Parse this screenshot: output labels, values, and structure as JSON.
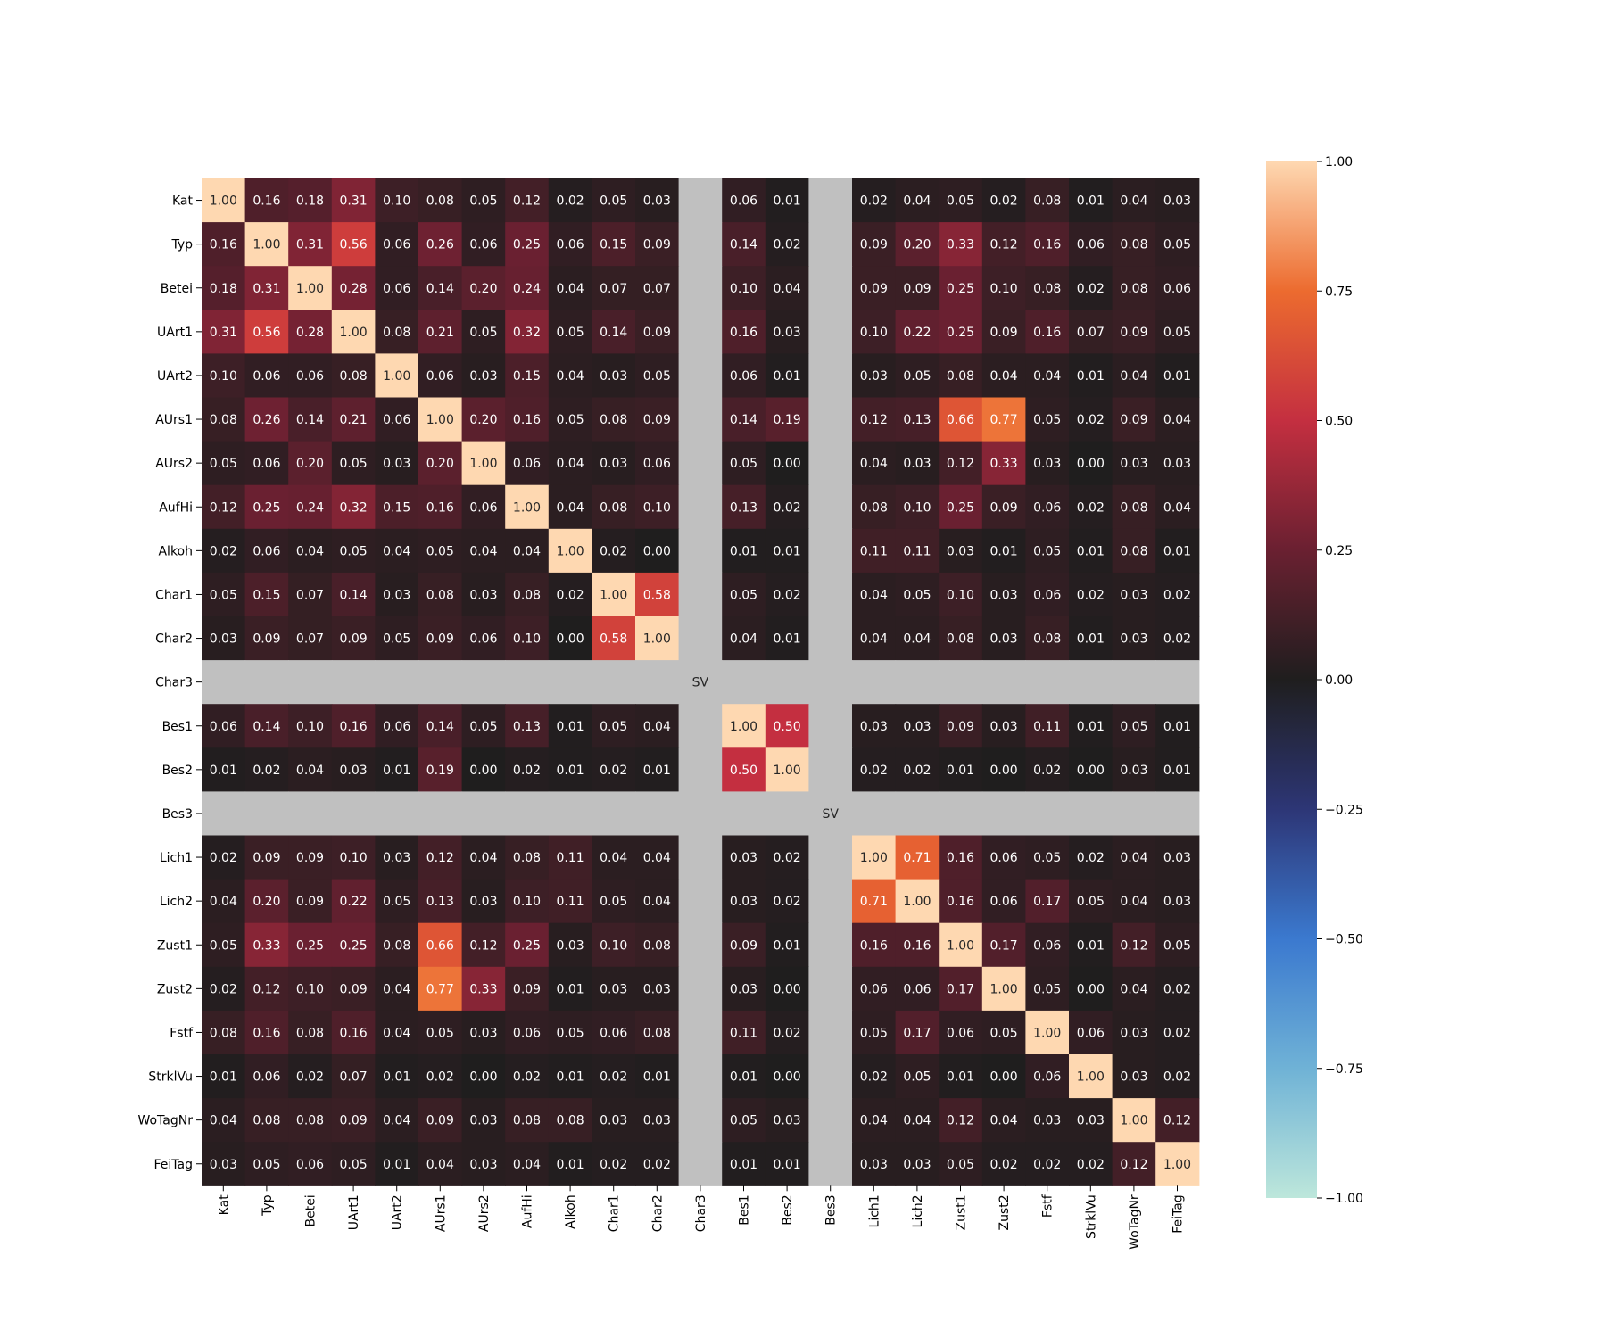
{
  "chart_data": {
    "type": "heatmap",
    "title": "",
    "xlabel": "",
    "ylabel": "",
    "labels": [
      "Kat",
      "Typ",
      "Betei",
      "UArt1",
      "UArt2",
      "AUrs1",
      "AUrs2",
      "AufHi",
      "Alkoh",
      "Char1",
      "Char2",
      "Char3",
      "Bes1",
      "Bes2",
      "Bes3",
      "Lich1",
      "Lich2",
      "Zust1",
      "Zust2",
      "Fstf",
      "StrklVu",
      "WoTagNr",
      "FeiTag"
    ],
    "missing_label": "SV",
    "missing_color": "#c0c0c0",
    "missing_rows": [
      "Char3",
      "Bes3"
    ],
    "missing_columns": [
      "Char3",
      "Bes3"
    ],
    "value_format": "2 decimals",
    "matrix": [
      [
        1.0,
        0.16,
        0.18,
        0.31,
        0.1,
        0.08,
        0.05,
        0.12,
        0.02,
        0.05,
        0.03,
        null,
        0.06,
        0.01,
        null,
        0.02,
        0.04,
        0.05,
        0.02,
        0.08,
        0.01,
        0.04,
        0.03
      ],
      [
        0.16,
        1.0,
        0.31,
        0.56,
        0.06,
        0.26,
        0.06,
        0.25,
        0.06,
        0.15,
        0.09,
        null,
        0.14,
        0.02,
        null,
        0.09,
        0.2,
        0.33,
        0.12,
        0.16,
        0.06,
        0.08,
        0.05
      ],
      [
        0.18,
        0.31,
        1.0,
        0.28,
        0.06,
        0.14,
        0.2,
        0.24,
        0.04,
        0.07,
        0.07,
        null,
        0.1,
        0.04,
        null,
        0.09,
        0.09,
        0.25,
        0.1,
        0.08,
        0.02,
        0.08,
        0.06
      ],
      [
        0.31,
        0.56,
        0.28,
        1.0,
        0.08,
        0.21,
        0.05,
        0.32,
        0.05,
        0.14,
        0.09,
        null,
        0.16,
        0.03,
        null,
        0.1,
        0.22,
        0.25,
        0.09,
        0.16,
        0.07,
        0.09,
        0.05
      ],
      [
        0.1,
        0.06,
        0.06,
        0.08,
        1.0,
        0.06,
        0.03,
        0.15,
        0.04,
        0.03,
        0.05,
        null,
        0.06,
        0.01,
        null,
        0.03,
        0.05,
        0.08,
        0.04,
        0.04,
        0.01,
        0.04,
        0.01
      ],
      [
        0.08,
        0.26,
        0.14,
        0.21,
        0.06,
        1.0,
        0.2,
        0.16,
        0.05,
        0.08,
        0.09,
        null,
        0.14,
        0.19,
        null,
        0.12,
        0.13,
        0.66,
        0.77,
        0.05,
        0.02,
        0.09,
        0.04
      ],
      [
        0.05,
        0.06,
        0.2,
        0.05,
        0.03,
        0.2,
        1.0,
        0.06,
        0.04,
        0.03,
        0.06,
        null,
        0.05,
        0.0,
        null,
        0.04,
        0.03,
        0.12,
        0.33,
        0.03,
        0.0,
        0.03,
        0.03
      ],
      [
        0.12,
        0.25,
        0.24,
        0.32,
        0.15,
        0.16,
        0.06,
        1.0,
        0.04,
        0.08,
        0.1,
        null,
        0.13,
        0.02,
        null,
        0.08,
        0.1,
        0.25,
        0.09,
        0.06,
        0.02,
        0.08,
        0.04
      ],
      [
        0.02,
        0.06,
        0.04,
        0.05,
        0.04,
        0.05,
        0.04,
        0.04,
        1.0,
        0.02,
        0.0,
        null,
        0.01,
        0.01,
        null,
        0.11,
        0.11,
        0.03,
        0.01,
        0.05,
        0.01,
        0.08,
        0.01
      ],
      [
        0.05,
        0.15,
        0.07,
        0.14,
        0.03,
        0.08,
        0.03,
        0.08,
        0.02,
        1.0,
        0.58,
        null,
        0.05,
        0.02,
        null,
        0.04,
        0.05,
        0.1,
        0.03,
        0.06,
        0.02,
        0.03,
        0.02
      ],
      [
        0.03,
        0.09,
        0.07,
        0.09,
        0.05,
        0.09,
        0.06,
        0.1,
        0.0,
        0.58,
        1.0,
        null,
        0.04,
        0.01,
        null,
        0.04,
        0.04,
        0.08,
        0.03,
        0.08,
        0.01,
        0.03,
        0.02
      ],
      [
        null,
        null,
        null,
        null,
        null,
        null,
        null,
        null,
        null,
        null,
        null,
        null,
        null,
        null,
        null,
        null,
        null,
        null,
        null,
        null,
        null,
        null,
        null
      ],
      [
        0.06,
        0.14,
        0.1,
        0.16,
        0.06,
        0.14,
        0.05,
        0.13,
        0.01,
        0.05,
        0.04,
        null,
        1.0,
        0.5,
        null,
        0.03,
        0.03,
        0.09,
        0.03,
        0.11,
        0.01,
        0.05,
        0.01
      ],
      [
        0.01,
        0.02,
        0.04,
        0.03,
        0.01,
        0.19,
        0.0,
        0.02,
        0.01,
        0.02,
        0.01,
        null,
        0.5,
        1.0,
        null,
        0.02,
        0.02,
        0.01,
        0.0,
        0.02,
        0.0,
        0.03,
        0.01
      ],
      [
        null,
        null,
        null,
        null,
        null,
        null,
        null,
        null,
        null,
        null,
        null,
        null,
        null,
        null,
        null,
        null,
        null,
        null,
        null,
        null,
        null,
        null,
        null
      ],
      [
        0.02,
        0.09,
        0.09,
        0.1,
        0.03,
        0.12,
        0.04,
        0.08,
        0.11,
        0.04,
        0.04,
        null,
        0.03,
        0.02,
        null,
        1.0,
        0.71,
        0.16,
        0.06,
        0.05,
        0.02,
        0.04,
        0.03
      ],
      [
        0.04,
        0.2,
        0.09,
        0.22,
        0.05,
        0.13,
        0.03,
        0.1,
        0.11,
        0.05,
        0.04,
        null,
        0.03,
        0.02,
        null,
        0.71,
        1.0,
        0.16,
        0.06,
        0.17,
        0.05,
        0.04,
        0.03
      ],
      [
        0.05,
        0.33,
        0.25,
        0.25,
        0.08,
        0.66,
        0.12,
        0.25,
        0.03,
        0.1,
        0.08,
        null,
        0.09,
        0.01,
        null,
        0.16,
        0.16,
        1.0,
        0.17,
        0.06,
        0.01,
        0.12,
        0.05
      ],
      [
        0.02,
        0.12,
        0.1,
        0.09,
        0.04,
        0.77,
        0.33,
        0.09,
        0.01,
        0.03,
        0.03,
        null,
        0.03,
        0.0,
        null,
        0.06,
        0.06,
        0.17,
        1.0,
        0.05,
        0.0,
        0.04,
        0.02
      ],
      [
        0.08,
        0.16,
        0.08,
        0.16,
        0.04,
        0.05,
        0.03,
        0.06,
        0.05,
        0.06,
        0.08,
        null,
        0.11,
        0.02,
        null,
        0.05,
        0.17,
        0.06,
        0.05,
        1.0,
        0.06,
        0.03,
        0.02
      ],
      [
        0.01,
        0.06,
        0.02,
        0.07,
        0.01,
        0.02,
        0.0,
        0.02,
        0.01,
        0.02,
        0.01,
        null,
        0.01,
        0.0,
        null,
        0.02,
        0.05,
        0.01,
        0.0,
        0.06,
        1.0,
        0.03,
        0.02
      ],
      [
        0.04,
        0.08,
        0.08,
        0.09,
        0.04,
        0.09,
        0.03,
        0.08,
        0.08,
        0.03,
        0.03,
        null,
        0.05,
        0.03,
        null,
        0.04,
        0.04,
        0.12,
        0.04,
        0.03,
        0.03,
        1.0,
        0.12
      ],
      [
        0.03,
        0.05,
        0.06,
        0.05,
        0.01,
        0.04,
        0.03,
        0.04,
        0.01,
        0.02,
        0.02,
        null,
        0.01,
        0.01,
        null,
        0.03,
        0.03,
        0.05,
        0.02,
        0.02,
        0.02,
        0.12,
        1.0
      ]
    ],
    "colorbar": {
      "vmin": -1.0,
      "vmax": 1.0,
      "ticks": [
        "1.00",
        "0.75",
        "0.50",
        "0.25",
        "0.00",
        "−0.25",
        "−0.50",
        "−0.75",
        "−1.00"
      ],
      "tick_values": [
        1.0,
        0.75,
        0.5,
        0.25,
        0.0,
        -0.25,
        -0.5,
        -0.75,
        -1.0
      ],
      "colormap": "icefire",
      "colormap_stops": [
        [
          -1.0,
          "#bde7db"
        ],
        [
          -0.75,
          "#6fb2d6"
        ],
        [
          -0.5,
          "#3b79cf"
        ],
        [
          -0.25,
          "#2d3676"
        ],
        [
          0.0,
          "#1f1e1e"
        ],
        [
          0.25,
          "#6a2031"
        ],
        [
          0.5,
          "#c42f40"
        ],
        [
          0.75,
          "#ec6b2f"
        ],
        [
          1.0,
          "#fed8b1"
        ]
      ]
    }
  }
}
